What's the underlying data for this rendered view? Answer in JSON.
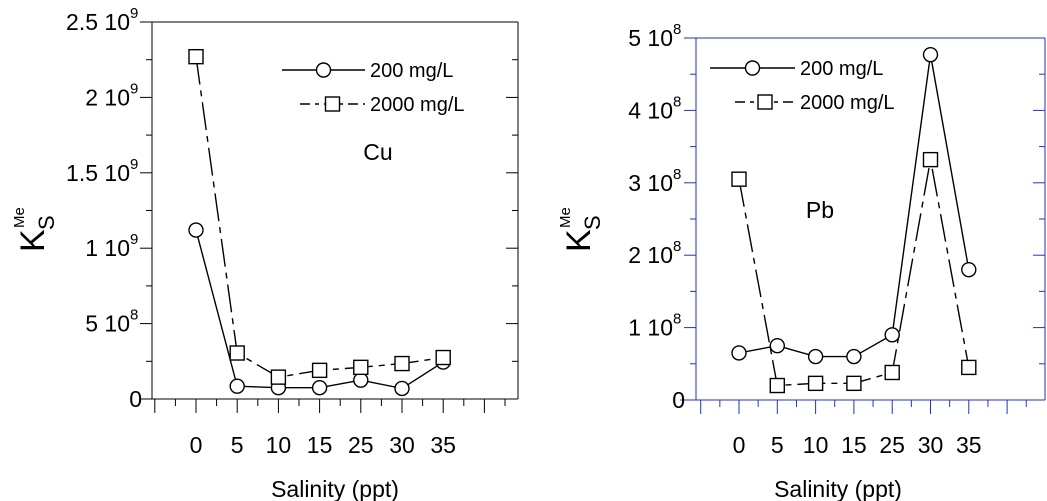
{
  "chart_data": [
    {
      "type": "line",
      "label": "Cu",
      "xlabel": "Salinity (ppt)",
      "ylabel": "K",
      "ylabel_sub": "S",
      "ylabel_sup": "Me",
      "categories": [
        "0",
        "5",
        "10",
        "15",
        "25",
        "30",
        "35"
      ],
      "ylim": [
        0,
        2500000000
      ],
      "yticks": [
        {
          "value": 0,
          "mant": "0",
          "exp": ""
        },
        {
          "value": 500000000,
          "mant": "5 10",
          "exp": "8"
        },
        {
          "value": 1000000000,
          "mant": "1 10",
          "exp": "9"
        },
        {
          "value": 1500000000,
          "mant": "1.5 10",
          "exp": "9"
        },
        {
          "value": 2000000000,
          "mant": "2 10",
          "exp": "9"
        },
        {
          "value": 2500000000,
          "mant": "2.5 10",
          "exp": "9"
        }
      ],
      "legend_position": "top-right",
      "series": [
        {
          "name": "200 mg/L",
          "marker": "circle",
          "dash": "solid",
          "values": [
            1120000000,
            85000000,
            75000000,
            75000000,
            125000000,
            70000000,
            245000000
          ]
        },
        {
          "name": "2000 mg/L",
          "marker": "square",
          "dash": "dash",
          "values": [
            2270000000,
            305000000,
            145000000,
            190000000,
            210000000,
            235000000,
            275000000
          ]
        }
      ]
    },
    {
      "type": "line",
      "label": "Pb",
      "xlabel": "Salinity (ppt)",
      "ylabel": "K",
      "ylabel_sub": "S",
      "ylabel_sup": "Me",
      "categories": [
        "0",
        "5",
        "10",
        "15",
        "25",
        "30",
        "35"
      ],
      "ylim": [
        0,
        500000000
      ],
      "yticks": [
        {
          "value": 0,
          "mant": "0",
          "exp": ""
        },
        {
          "value": 100000000,
          "mant": "1 10",
          "exp": "8"
        },
        {
          "value": 200000000,
          "mant": "2 10",
          "exp": "8"
        },
        {
          "value": 300000000,
          "mant": "3 10",
          "exp": "8"
        },
        {
          "value": 400000000,
          "mant": "4 10",
          "exp": "8"
        },
        {
          "value": 500000000,
          "mant": "5 10",
          "exp": "8"
        }
      ],
      "legend_position": "top-left",
      "series": [
        {
          "name": "200 mg/L",
          "marker": "circle",
          "dash": "solid",
          "values": [
            65000000,
            75000000,
            60000000,
            60000000,
            90000000,
            477000000,
            180000000
          ]
        },
        {
          "name": "2000 mg/L",
          "marker": "square",
          "dash": "dash",
          "values": [
            305000000,
            20000000,
            23000000,
            23000000,
            38000000,
            332000000,
            45000000
          ]
        }
      ]
    }
  ]
}
